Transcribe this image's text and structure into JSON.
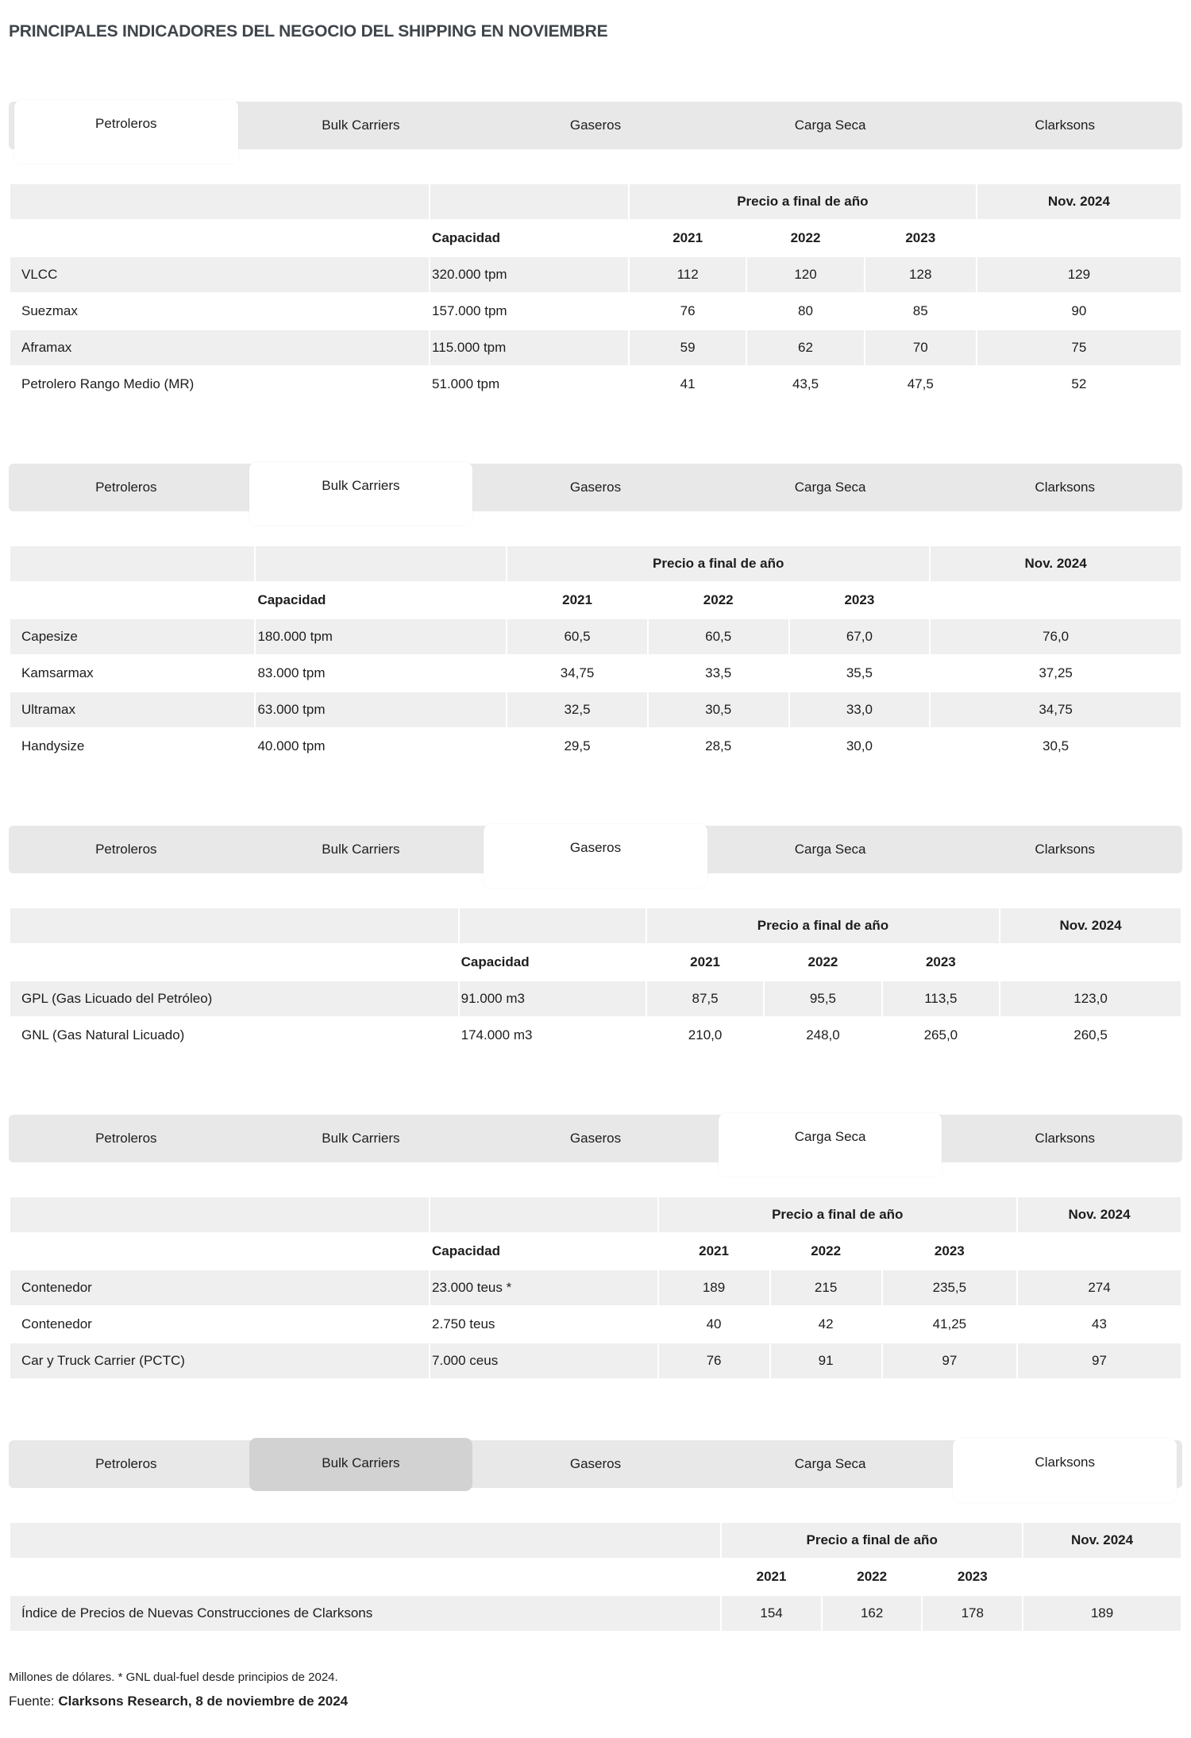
{
  "page_title": "PRINCIPALES INDICADORES DEL NEGOCIO DEL SHIPPING EN NOVIEMBRE",
  "tab_labels": [
    "Petroleros",
    "Bulk Carriers",
    "Gaseros",
    "Carga Seca",
    "Clarksons"
  ],
  "table_headers": {
    "price": "Precio a final de año",
    "nov": "Nov. 2024",
    "capacity": "Capacidad",
    "years": [
      "2021",
      "2022",
      "2023"
    ]
  },
  "tables": {
    "petroleros": {
      "rows": [
        {
          "label": "VLCC",
          "capacity": "320.000 tpm",
          "y2021": "112",
          "y2022": "120",
          "y2023": "128",
          "nov2024": "129"
        },
        {
          "label": "Suezmax",
          "capacity": "157.000 tpm",
          "y2021": "76",
          "y2022": "80",
          "y2023": "85",
          "nov2024": "90"
        },
        {
          "label": "Aframax",
          "capacity": "115.000 tpm",
          "y2021": "59",
          "y2022": "62",
          "y2023": "70",
          "nov2024": "75"
        },
        {
          "label": "Petrolero Rango Medio (MR)",
          "capacity": "51.000 tpm",
          "y2021": "41",
          "y2022": "43,5",
          "y2023": "47,5",
          "nov2024": "52"
        }
      ]
    },
    "bulk_carriers": {
      "rows": [
        {
          "label": "Capesize",
          "capacity": "180.000 tpm",
          "y2021": "60,5",
          "y2022": "60,5",
          "y2023": "67,0",
          "nov2024": "76,0"
        },
        {
          "label": "Kamsarmax",
          "capacity": "83.000 tpm",
          "y2021": "34,75",
          "y2022": "33,5",
          "y2023": "35,5",
          "nov2024": "37,25"
        },
        {
          "label": "Ultramax",
          "capacity": "63.000 tpm",
          "y2021": "32,5",
          "y2022": "30,5",
          "y2023": "33,0",
          "nov2024": "34,75"
        },
        {
          "label": "Handysize",
          "capacity": "40.000 tpm",
          "y2021": "29,5",
          "y2022": "28,5",
          "y2023": "30,0",
          "nov2024": "30,5"
        }
      ]
    },
    "gaseros": {
      "rows": [
        {
          "label": "GPL (Gas Licuado del Petróleo)",
          "capacity": "91.000 m3",
          "y2021": "87,5",
          "y2022": "95,5",
          "y2023": "113,5",
          "nov2024": "123,0"
        },
        {
          "label": "GNL (Gas Natural Licuado)",
          "capacity": "174.000 m3",
          "y2021": "210,0",
          "y2022": "248,0",
          "y2023": "265,0",
          "nov2024": "260,5"
        }
      ]
    },
    "carga_seca": {
      "rows": [
        {
          "label": "Contenedor",
          "capacity": "23.000 teus *",
          "y2021": "189",
          "y2022": "215",
          "y2023": "235,5",
          "nov2024": "274"
        },
        {
          "label": "Contenedor",
          "capacity": "2.750 teus",
          "y2021": "40",
          "y2022": "42",
          "y2023": "41,25",
          "nov2024": "43"
        },
        {
          "label": "Car y Truck Carrier (PCTC)",
          "capacity": "7.000 ceus",
          "y2021": "76",
          "y2022": "91",
          "y2023": "97",
          "nov2024": "97"
        }
      ]
    },
    "clarksons": {
      "rows": [
        {
          "label": "Índice de Precios de Nuevas Construcciones de Clarksons",
          "y2021": "154",
          "y2022": "162",
          "y2023": "178",
          "nov2024": "189"
        }
      ]
    }
  },
  "footer": {
    "note": "Millones de dólares. * GNL dual-fuel desde principios de 2024.",
    "source_label": "Fuente:",
    "source_value": "Clarksons Research, 8 de noviembre de 2024"
  },
  "colors": {
    "tab_bar": "#e8e8e8",
    "tab_active": "#ffffff",
    "tab_hover": "#d2d2d2",
    "table_band": "#efefef",
    "title_text": "#3f454b"
  }
}
